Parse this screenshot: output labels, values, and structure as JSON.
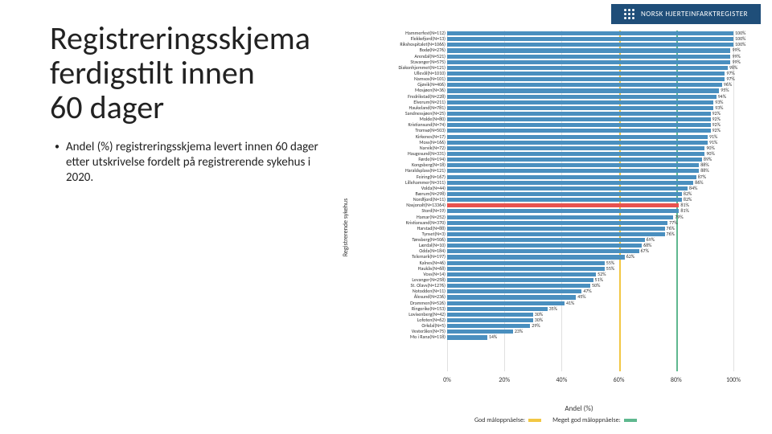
{
  "logo_text": "NORSK HJERTEINFARKTREGISTER",
  "title_line1": "Registreringsskjema",
  "title_line2": "ferdigstilt innen",
  "title_line3": "60 dager",
  "body_text": "Andel (%) registreringsskjema levert innen 60 dager etter utskrivelse fordelt på registrerende sykehus i 2020.",
  "chart": {
    "type": "bar-horizontal",
    "y_axis_label": "Registrerende sykehus",
    "x_axis_label": "Andel (%)",
    "x_ticks": [
      0,
      20,
      40,
      60,
      80,
      100
    ],
    "x_max": 100,
    "grid_color": "#e0e0e0",
    "default_bar_color": "#4a8fbf",
    "highlight_bar_color": "#e8524f",
    "ref_lines": [
      {
        "value": 60,
        "color": "#f2c744",
        "label": "God måloppnåelse:"
      },
      {
        "value": 80,
        "color": "#5fb88f",
        "label": "Meget god måloppnåelse:"
      }
    ],
    "bars": [
      {
        "label": "Hammerfest(N=112)",
        "value": 100
      },
      {
        "label": "Flekkefjord(N=13)",
        "value": 100
      },
      {
        "label": "Rikshospitalet(N=1066)",
        "value": 100
      },
      {
        "label": "Bodø(N=276)",
        "value": 99
      },
      {
        "label": "Arendal(N=521)",
        "value": 99
      },
      {
        "label": "Stavanger(N=575)",
        "value": 99
      },
      {
        "label": "Diakonhjemmet(N=121)",
        "value": 98
      },
      {
        "label": "Ullevål(N=1010)",
        "value": 97
      },
      {
        "label": "Namsos(N=101)",
        "value": 97
      },
      {
        "label": "Gjøvik(N=406)",
        "value": 96
      },
      {
        "label": "Mosjøen(N=36)",
        "value": 95
      },
      {
        "label": "Fredrikstad(N=228)",
        "value": 94
      },
      {
        "label": "Elverum(N=211)",
        "value": 93
      },
      {
        "label": "Haukeland(N=781)",
        "value": 93
      },
      {
        "label": "Sandnessjøen(N=25)",
        "value": 92
      },
      {
        "label": "Molde(N=80)",
        "value": 92
      },
      {
        "label": "Kristiansund(N=74)",
        "value": 92
      },
      {
        "label": "Tromsø(N=503)",
        "value": 92
      },
      {
        "label": "Kirkenes(N=17)",
        "value": 91
      },
      {
        "label": "Moss(N=166)",
        "value": 91
      },
      {
        "label": "Narvik(N=72)",
        "value": 90
      },
      {
        "label": "Haugesund(N=331)",
        "value": 90
      },
      {
        "label": "Førde(N=194)",
        "value": 89
      },
      {
        "label": "Kongsberg(N=18)",
        "value": 88
      },
      {
        "label": "Haraldsplass(N=121)",
        "value": 88
      },
      {
        "label": "Feiring(N=167)",
        "value": 87
      },
      {
        "label": "Lillehammer(N=311)",
        "value": 86
      },
      {
        "label": "Volda(N=44)",
        "value": 84
      },
      {
        "label": "Bærum(N=298)",
        "value": 82
      },
      {
        "label": "Nordfjord(N=11)",
        "value": 82
      },
      {
        "label": "Nasjonalt(N=13364)",
        "value": 81,
        "highlight": true
      },
      {
        "label": "Stord(N=19)",
        "value": 81
      },
      {
        "label": "Hamar(N=252)",
        "value": 79
      },
      {
        "label": "Kristiansand(N=370)",
        "value": 77
      },
      {
        "label": "Harstad(N=88)",
        "value": 76
      },
      {
        "label": "Tynset(N=3)",
        "value": 76
      },
      {
        "label": "Tønsberg(N=506)",
        "value": 69
      },
      {
        "label": "Lærdal(N=10)",
        "value": 68
      },
      {
        "label": "Odda(N=184)",
        "value": 67
      },
      {
        "label": "Telemark(N=197)",
        "value": 62
      },
      {
        "label": "Kalnes(N=46)",
        "value": 55
      },
      {
        "label": "Haukås(N=68)",
        "value": 55
      },
      {
        "label": "Voss(N=14)",
        "value": 52
      },
      {
        "label": "Levanger(N=258)",
        "value": 51
      },
      {
        "label": "St. Olavs(N=1276)",
        "value": 50
      },
      {
        "label": "Notodden(N=11)",
        "value": 47
      },
      {
        "label": "Ålesund(N=236)",
        "value": 45
      },
      {
        "label": "Drammen(N=526)",
        "value": 41
      },
      {
        "label": "Ringerike(N=153)",
        "value": 35
      },
      {
        "label": "Lovisenberg(N=42)",
        "value": 30
      },
      {
        "label": "Lofoten(N=62)",
        "value": 30
      },
      {
        "label": "Orkdal(N=5)",
        "value": 29
      },
      {
        "label": "Vesterålen(N=75)",
        "value": 23
      },
      {
        "label": "Mo i Rana(N=118)",
        "value": 14
      }
    ]
  }
}
